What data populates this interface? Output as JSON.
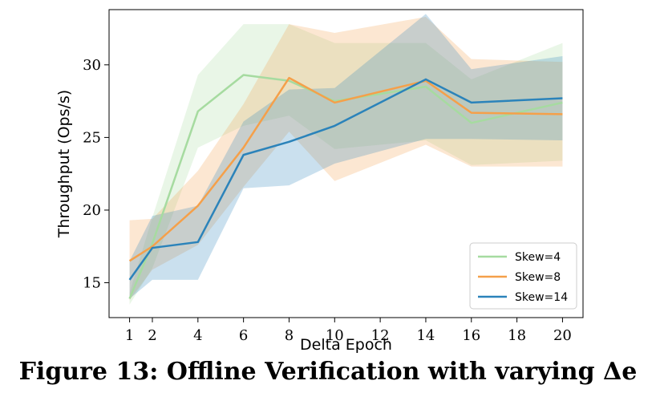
{
  "caption": "Figure 13: Offline Verification with varying Δe",
  "chart_data": {
    "type": "line",
    "title": "",
    "xlabel": "Delta Epoch",
    "ylabel": "Throughput (Ops/s)",
    "x": [
      1,
      2,
      4,
      6,
      8,
      10,
      14,
      16,
      20
    ],
    "xticks": [
      1,
      2,
      4,
      6,
      8,
      10,
      12,
      14,
      16,
      18,
      20
    ],
    "yticks": [
      15,
      20,
      25,
      30
    ],
    "xlim": [
      0.1,
      20.9
    ],
    "ylim": [
      12.6,
      33.8
    ],
    "grid": false,
    "legend_position": "lower-right",
    "series": [
      {
        "name": "Skew=4",
        "color": "#a6dba0",
        "values": [
          13.9,
          17.7,
          26.8,
          29.3,
          28.9,
          27.5,
          28.5,
          26.0,
          27.4
        ],
        "lower": [
          13.5,
          16.0,
          24.3,
          25.8,
          26.5,
          24.2,
          24.8,
          23.1,
          23.4
        ],
        "upper": [
          14.3,
          19.5,
          29.3,
          32.8,
          32.8,
          31.5,
          31.5,
          29.0,
          31.5
        ]
      },
      {
        "name": "Skew=8",
        "color": "#f5a04a",
        "values": [
          16.5,
          17.5,
          20.3,
          24.3,
          29.1,
          27.4,
          28.9,
          26.7,
          26.6
        ],
        "lower": [
          13.8,
          15.9,
          17.6,
          21.6,
          25.4,
          22.0,
          24.5,
          23.0,
          23.0
        ],
        "upper": [
          19.3,
          19.4,
          22.7,
          27.3,
          32.8,
          32.2,
          33.3,
          30.4,
          30.2
        ]
      },
      {
        "name": "Skew=14",
        "color": "#2b83ba",
        "values": [
          15.2,
          17.4,
          17.8,
          23.8,
          24.7,
          25.8,
          29.0,
          27.4,
          27.7
        ],
        "lower": [
          13.9,
          15.2,
          15.2,
          21.5,
          21.7,
          23.2,
          24.9,
          24.9,
          24.8
        ],
        "upper": [
          16.5,
          19.6,
          20.3,
          26.1,
          28.3,
          28.4,
          33.5,
          29.7,
          30.6
        ]
      }
    ]
  }
}
